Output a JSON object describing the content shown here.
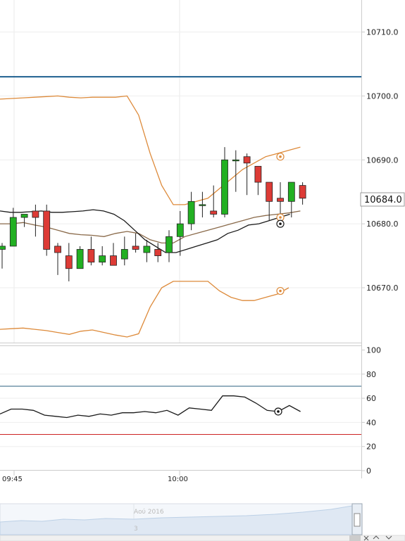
{
  "chart_data": [
    {
      "type": "candlestick",
      "ylim": [
        10661,
        10715
      ],
      "y_ticks": [
        "10710.0",
        "10700.0",
        "10690.0",
        "10680.0",
        "10670.0"
      ],
      "y_tick_values": [
        10710,
        10700,
        10690,
        10680,
        10670
      ],
      "current_price": "10684.0",
      "horizontal_line": 10703,
      "x_tick_labels": [
        "09:45",
        "10:00"
      ],
      "candles": [
        {
          "o": 10676.0,
          "h": 10677.0,
          "l": 10673.0,
          "c": 10676.5
        },
        {
          "o": 10676.5,
          "h": 10682.5,
          "l": 10676.5,
          "c": 10681.0
        },
        {
          "o": 10681.0,
          "h": 10681.5,
          "l": 10679.5,
          "c": 10681.5
        },
        {
          "o": 10682.0,
          "h": 10683.0,
          "l": 10678.0,
          "c": 10681.0
        },
        {
          "o": 10682.0,
          "h": 10683.0,
          "l": 10675.0,
          "c": 10676.0
        },
        {
          "o": 10676.5,
          "h": 10677.0,
          "l": 10672.0,
          "c": 10675.5
        },
        {
          "o": 10675.0,
          "h": 10677.0,
          "l": 10671.0,
          "c": 10673.0
        },
        {
          "o": 10673.0,
          "h": 10676.5,
          "l": 10673.0,
          "c": 10676.0
        },
        {
          "o": 10676.0,
          "h": 10678.0,
          "l": 10673.5,
          "c": 10674.0
        },
        {
          "o": 10674.0,
          "h": 10676.5,
          "l": 10673.5,
          "c": 10675.0
        },
        {
          "o": 10675.0,
          "h": 10677.0,
          "l": 10673.5,
          "c": 10673.5
        },
        {
          "o": 10674.5,
          "h": 10678.0,
          "l": 10673.5,
          "c": 10676.0
        },
        {
          "o": 10676.5,
          "h": 10678.5,
          "l": 10675.5,
          "c": 10676.0
        },
        {
          "o": 10675.5,
          "h": 10677.5,
          "l": 10674.0,
          "c": 10676.5
        },
        {
          "o": 10676.0,
          "h": 10677.0,
          "l": 10674.0,
          "c": 10675.0
        },
        {
          "o": 10675.5,
          "h": 10679.0,
          "l": 10674.0,
          "c": 10678.0
        },
        {
          "o": 10678.0,
          "h": 10682.0,
          "l": 10675.0,
          "c": 10680.0
        },
        {
          "o": 10680.0,
          "h": 10685.0,
          "l": 10679.0,
          "c": 10683.5
        },
        {
          "o": 10683.0,
          "h": 10685.0,
          "l": 10681.0,
          "c": 10683.0
        },
        {
          "o": 10682.0,
          "h": 10686.0,
          "l": 10681.0,
          "c": 10681.5
        },
        {
          "o": 10681.5,
          "h": 10692.0,
          "l": 10681.0,
          "c": 10690.0
        },
        {
          "o": 10690.0,
          "h": 10691.5,
          "l": 10685.0,
          "c": 10690.0
        },
        {
          "o": 10690.5,
          "h": 10691.0,
          "l": 10684.5,
          "c": 10689.5
        },
        {
          "o": 10689.0,
          "h": 10689.0,
          "l": 10684.5,
          "c": 10686.5
        },
        {
          "o": 10686.5,
          "h": 10686.5,
          "l": 10680.5,
          "c": 10683.5
        },
        {
          "o": 10684.0,
          "h": 10686.5,
          "l": 10681.5,
          "c": 10683.5
        },
        {
          "o": 10683.5,
          "h": 10686.5,
          "l": 10681.0,
          "c": 10686.5
        },
        {
          "o": 10686.0,
          "h": 10686.5,
          "l": 10683.0,
          "c": 10684.0
        }
      ],
      "bollinger_upper": [
        10699.5,
        10699.6,
        10699.7,
        10699.8,
        10699.9,
        10700.0,
        10699.8,
        10699.7,
        10699.8,
        10699.8,
        10699.8,
        10700.0,
        10697.0,
        10691.0,
        10686.0,
        10683.0,
        10683.0,
        10683.5,
        10684.0,
        10685.5,
        10687.0,
        10688.5,
        10689.5,
        10690.5,
        10691.0,
        10691.5,
        10692.0
      ],
      "bollinger_lower": [
        10663.5,
        10663.6,
        10663.7,
        10663.5,
        10663.3,
        10663.0,
        10662.7,
        10663.2,
        10663.4,
        10663.0,
        10662.6,
        10662.3,
        10662.8,
        10667.0,
        10670.0,
        10671.0,
        10671.0,
        10671.0,
        10671.0,
        10669.5,
        10668.5,
        10668.0,
        10668.0,
        10668.5,
        10669.0,
        10670.0
      ],
      "ma_black": [
        10682.0,
        10681.8,
        10681.8,
        10681.9,
        10682.0,
        10681.8,
        10681.8,
        10681.9,
        10682.0,
        10682.2,
        10682.0,
        10681.5,
        10680.5,
        10679.0,
        10677.5,
        10676.5,
        10675.5,
        10675.5,
        10676.0,
        10676.5,
        10677.0,
        10677.5,
        10678.5,
        10679.0,
        10679.8,
        10680.0,
        10680.5,
        10681.0,
        10681.5
      ],
      "ma_brown": [
        10680.0,
        10680.0,
        10680.2,
        10679.8,
        10679.5,
        10679.0,
        10678.5,
        10678.3,
        10678.2,
        10678.0,
        10678.5,
        10678.8,
        10678.5,
        10677.5,
        10677.0,
        10677.0,
        10678.0,
        10678.5,
        10679.0,
        10679.5,
        10680.0,
        10680.5,
        10681.0,
        10681.3,
        10681.5,
        10681.7,
        10682.0
      ]
    },
    {
      "type": "line",
      "ylim": [
        0,
        100
      ],
      "y_ticks": [
        "100",
        "80",
        "60",
        "40",
        "20",
        "0"
      ],
      "y_tick_values": [
        100,
        80,
        60,
        40,
        20,
        0
      ],
      "upper_level": 70,
      "lower_level": 30,
      "values": [
        47,
        51,
        51,
        50,
        46,
        45,
        44,
        46,
        45,
        47,
        46,
        48,
        48,
        49,
        48,
        50,
        46,
        52,
        51,
        50,
        62,
        62,
        61,
        56,
        50,
        49,
        54,
        49
      ]
    }
  ],
  "colors": {
    "bull": "#22b022",
    "bear": "#dd3b36",
    "band": "#dd8a3a",
    "ma_brown": "#8a6a4a",
    "ma_black": "#1a1a1a",
    "hline": "#1e5f8f",
    "rsi_upper": "#2a5f7f",
    "rsi_lower": "#cc2222"
  },
  "navigator": {
    "label_date": "Αού 2016",
    "label_num": "3"
  }
}
